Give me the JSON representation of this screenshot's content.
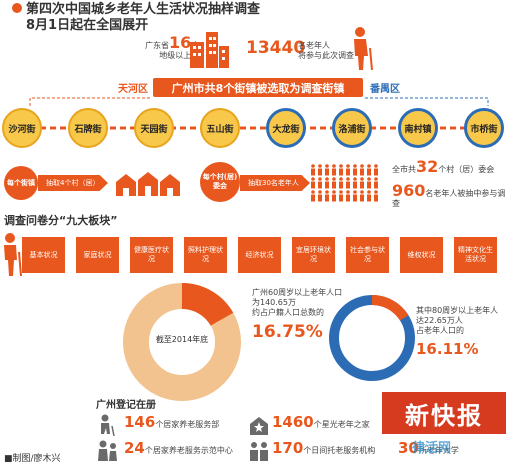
{
  "title": {
    "line1": "第四次中国城乡老年人生活状况抽样调查",
    "line2": "8月1日起在全国展开"
  },
  "intro": {
    "gd_prefix": "广东省",
    "gd_number": "16",
    "gd_suffix": "个",
    "gd_line2": "地级以上市",
    "elder_number": "13440",
    "elder_text1": "名老年人",
    "elder_text2": "将参与此次调查"
  },
  "banner": "广州市共8个街镇被选取为调查街镇",
  "districts": {
    "left": "天河区",
    "right": "番禺区"
  },
  "streets": [
    "沙河街",
    "石牌街",
    "天园街",
    "五山街",
    "大龙街",
    "洛浦街",
    "南村镇",
    "市桥街"
  ],
  "sampling": {
    "bubble1": "每个街镇",
    "arrow1": "抽取4个村（居）",
    "bubble2": "每个村(居)委会",
    "arrow2": "抽取30名老年人",
    "total_prefix": "全市共",
    "total_village": "32",
    "total_village_suffix": "个村（居）委会",
    "total_elders": "960",
    "total_elders_suffix": "名老年人被抽中参与调查"
  },
  "questionnaire": {
    "heading": "调查问卷分“九大板块”",
    "categories": [
      "基本状况",
      "家庭状况",
      "健康医疗状况",
      "照料护理状况",
      "经济状况",
      "宜居环境状况",
      "社会参与状况",
      "维权状况",
      "精神文化生活状况"
    ]
  },
  "donut_left": {
    "center": "截至2014年底",
    "text1": "广州60周岁以上老年人口",
    "text2": "为140.65万",
    "text3": "约占户籍人口总数的",
    "percent": "16.75%",
    "value": 16.75
  },
  "donut_right": {
    "text1": "其中80周岁以上老年人",
    "text2": "达22.65万人",
    "text3": "占老年人口的",
    "percent": "16.11%",
    "value": 16.11
  },
  "registry": {
    "heading": "广州登记在册",
    "items": [
      {
        "num": "146",
        "label": "个居家养老服务部"
      },
      {
        "num": "1460",
        "label": "个星光老年之家"
      },
      {
        "num": "24",
        "label": "个居家养老服务示范中心"
      },
      {
        "num": "170",
        "label": "个日间托老服务机构"
      },
      {
        "num": "30",
        "label": "所老年大学"
      }
    ]
  },
  "credit": "■制图/廖木兴",
  "logo": {
    "main": "新快报",
    "watermark": "律活网"
  },
  "colors": {
    "accent": "#e8571d",
    "street_fill": "#f8c84a",
    "panyu_ring": "#2c6cb5",
    "donut_bg": "#f2c38f"
  }
}
